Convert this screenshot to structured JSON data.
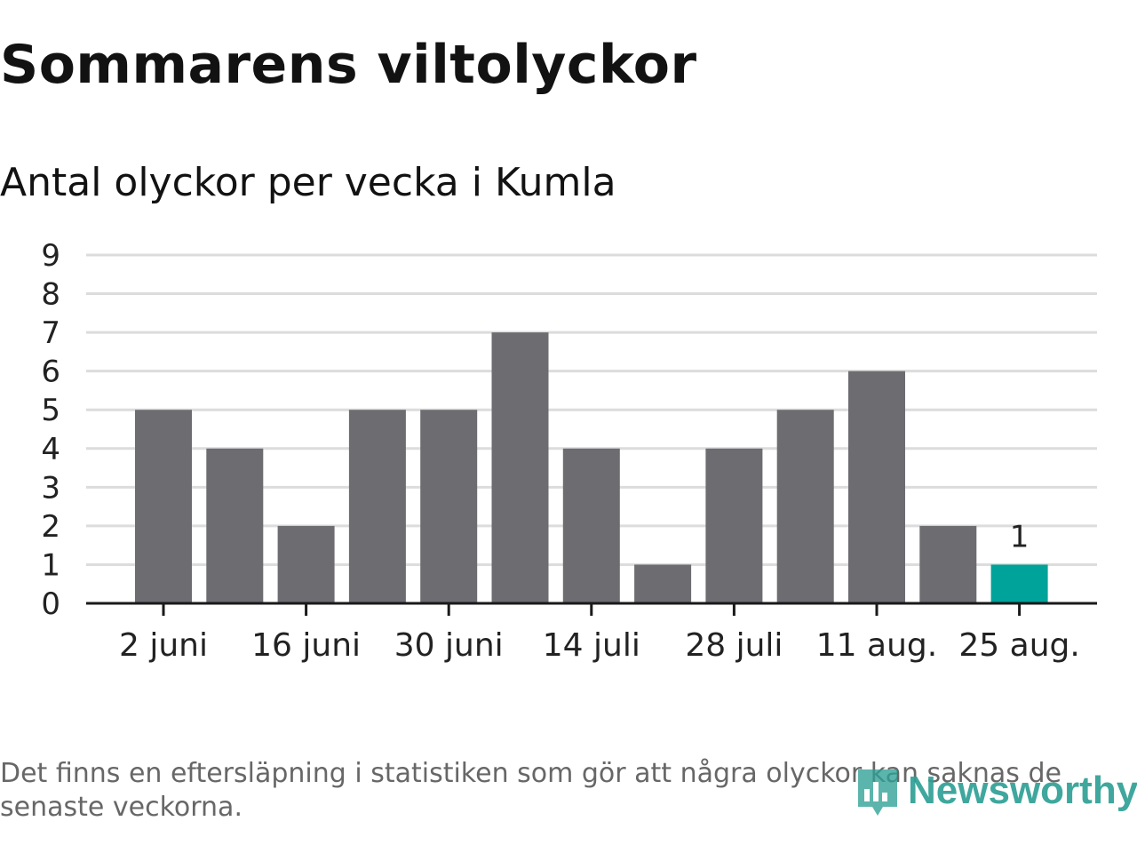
{
  "title": "Sommarens viltolyckor",
  "subtitle": "Antal olyckor per vecka i Kumla",
  "footnote": "Det finns en eftersläpning i statistiken som gör att några olyckor kan saknas de senaste veckorna.",
  "logo": {
    "text": "Newsworthy",
    "icon": "newsworthy-bar-chart-icon"
  },
  "colors": {
    "bar": "#6d6c71",
    "highlight": "#00a39a",
    "grid": "#dcdcdc",
    "axis": "#1a1a1a",
    "text": "#222222"
  },
  "chart_data": {
    "type": "bar",
    "title": "Sommarens viltolyckor",
    "subtitle": "Antal olyckor per vecka i Kumla",
    "values": [
      5,
      4,
      2,
      5,
      5,
      7,
      4,
      1,
      4,
      5,
      6,
      2,
      1
    ],
    "highlight_index": 12,
    "data_labels": [
      {
        "index": 12,
        "label": "1"
      }
    ],
    "xticks": [
      {
        "index": 0,
        "label": "2 juni"
      },
      {
        "index": 2,
        "label": "16 juni"
      },
      {
        "index": 4,
        "label": "30 juni"
      },
      {
        "index": 6,
        "label": "14 juli"
      },
      {
        "index": 8,
        "label": "28 juli"
      },
      {
        "index": 10,
        "label": "11 aug."
      },
      {
        "index": 12,
        "label": "25 aug."
      }
    ],
    "ylim": [
      0,
      9
    ],
    "yticks": [
      0,
      1,
      2,
      3,
      4,
      5,
      6,
      7,
      8,
      9
    ],
    "grid": true,
    "legend": "none"
  }
}
